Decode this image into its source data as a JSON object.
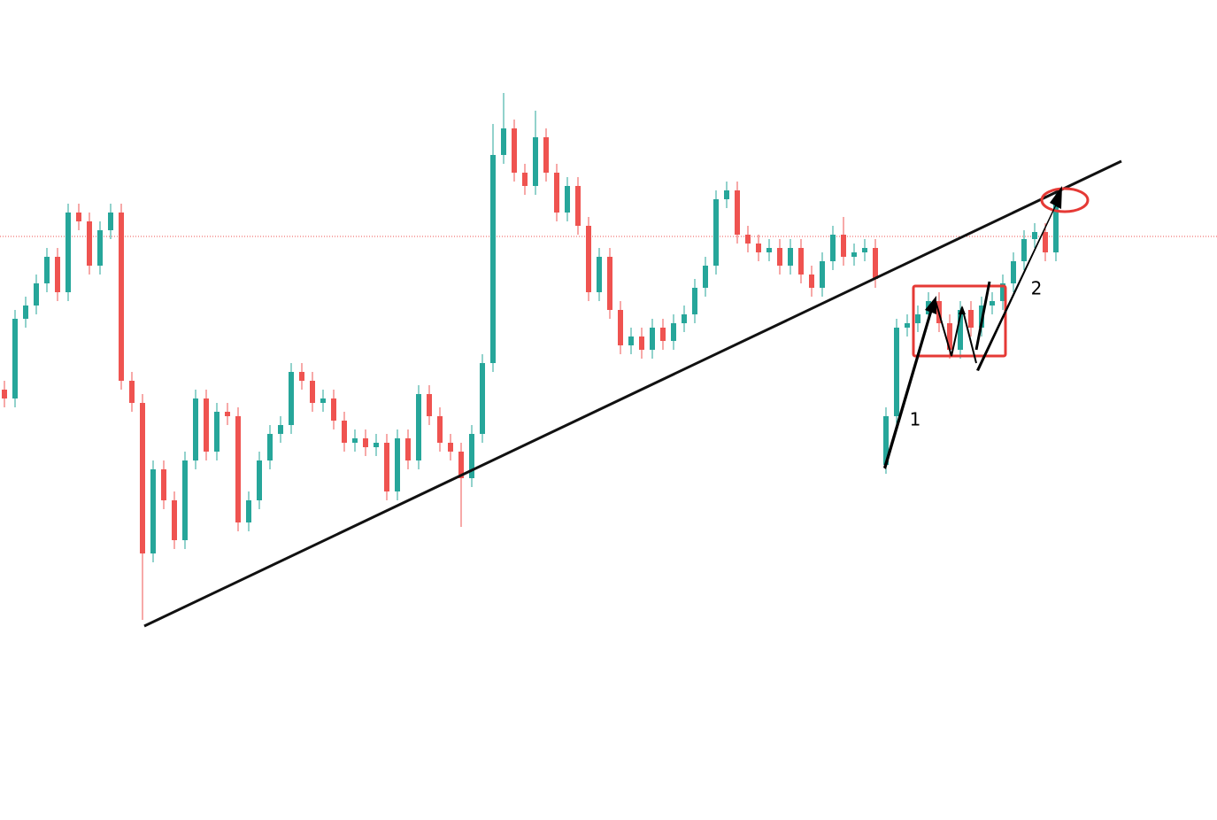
{
  "chart_data": {
    "type": "candlestick",
    "ylim": [
      0,
      926
    ],
    "up_color": "#26a69a",
    "down_color": "#ef5350",
    "price_line": {
      "value": 659,
      "color": "#ef5350"
    },
    "annotations": [
      "1",
      "2"
    ],
    "ohlc": [
      [
        486,
        496,
        466,
        476
      ],
      [
        476,
        576,
        466,
        566
      ],
      [
        566,
        591,
        556,
        581
      ],
      [
        581,
        616,
        571,
        606
      ],
      [
        606,
        646,
        596,
        636
      ],
      [
        636,
        646,
        586,
        596
      ],
      [
        596,
        696,
        586,
        686
      ],
      [
        686,
        696,
        666,
        676
      ],
      [
        676,
        686,
        616,
        626
      ],
      [
        626,
        676,
        616,
        666
      ],
      [
        666,
        696,
        656,
        686
      ],
      [
        686,
        696,
        486,
        496
      ],
      [
        496,
        506,
        461,
        471
      ],
      [
        471,
        481,
        226,
        301
      ],
      [
        301,
        406,
        291,
        396
      ],
      [
        396,
        406,
        351,
        361
      ],
      [
        361,
        371,
        306,
        316
      ],
      [
        316,
        416,
        306,
        406
      ],
      [
        406,
        486,
        396,
        476
      ],
      [
        476,
        486,
        406,
        416
      ],
      [
        416,
        471,
        406,
        461
      ],
      [
        461,
        471,
        446,
        456
      ],
      [
        456,
        466,
        326,
        336
      ],
      [
        336,
        371,
        326,
        361
      ],
      [
        361,
        416,
        351,
        406
      ],
      [
        406,
        446,
        396,
        436
      ],
      [
        436,
        456,
        426,
        446
      ],
      [
        446,
        516,
        436,
        506
      ],
      [
        506,
        516,
        486,
        496
      ],
      [
        496,
        506,
        461,
        471
      ],
      [
        471,
        486,
        461,
        476
      ],
      [
        476,
        486,
        441,
        451
      ],
      [
        451,
        461,
        416,
        426
      ],
      [
        426,
        441,
        416,
        431
      ],
      [
        431,
        441,
        411,
        421
      ],
      [
        421,
        436,
        411,
        426
      ],
      [
        426,
        436,
        361,
        371
      ],
      [
        371,
        441,
        361,
        431
      ],
      [
        431,
        441,
        396,
        406
      ],
      [
        406,
        491,
        396,
        481
      ],
      [
        481,
        491,
        446,
        456
      ],
      [
        456,
        466,
        416,
        426
      ],
      [
        426,
        436,
        406,
        416
      ],
      [
        416,
        426,
        331,
        386
      ],
      [
        386,
        446,
        376,
        436
      ],
      [
        436,
        526,
        426,
        516
      ],
      [
        516,
        786,
        506,
        751
      ],
      [
        751,
        821,
        741,
        781
      ],
      [
        781,
        791,
        721,
        731
      ],
      [
        731,
        741,
        706,
        716
      ],
      [
        716,
        801,
        706,
        771
      ],
      [
        771,
        781,
        721,
        731
      ],
      [
        731,
        741,
        676,
        686
      ],
      [
        686,
        726,
        676,
        716
      ],
      [
        716,
        726,
        661,
        671
      ],
      [
        671,
        681,
        586,
        596
      ],
      [
        596,
        646,
        586,
        636
      ],
      [
        636,
        646,
        566,
        576
      ],
      [
        576,
        586,
        526,
        536
      ],
      [
        536,
        556,
        526,
        546
      ],
      [
        546,
        556,
        521,
        531
      ],
      [
        531,
        566,
        521,
        556
      ],
      [
        556,
        566,
        531,
        541
      ],
      [
        541,
        571,
        531,
        561
      ],
      [
        561,
        581,
        551,
        571
      ],
      [
        571,
        611,
        561,
        601
      ],
      [
        601,
        636,
        591,
        626
      ],
      [
        626,
        711,
        616,
        701
      ],
      [
        701,
        721,
        691,
        711
      ],
      [
        711,
        721,
        651,
        661
      ],
      [
        661,
        671,
        641,
        651
      ],
      [
        651,
        661,
        631,
        641
      ],
      [
        641,
        656,
        631,
        646
      ],
      [
        646,
        656,
        616,
        626
      ],
      [
        626,
        656,
        616,
        646
      ],
      [
        646,
        656,
        606,
        616
      ],
      [
        616,
        626,
        591,
        601
      ],
      [
        601,
        641,
        591,
        631
      ],
      [
        631,
        671,
        621,
        661
      ],
      [
        661,
        681,
        626,
        636
      ],
      [
        636,
        651,
        626,
        641
      ],
      [
        641,
        656,
        631,
        646
      ],
      [
        646,
        656,
        601,
        611
      ],
      [
        401,
        466,
        391,
        456
      ],
      [
        456,
        566,
        446,
        556
      ],
      [
        556,
        571,
        546,
        561
      ],
      [
        561,
        581,
        551,
        571
      ],
      [
        571,
        596,
        561,
        586
      ],
      [
        586,
        596,
        551,
        561
      ],
      [
        561,
        571,
        521,
        531
      ],
      [
        531,
        586,
        521,
        576
      ],
      [
        576,
        586,
        546,
        556
      ],
      [
        556,
        591,
        546,
        581
      ],
      [
        581,
        596,
        571,
        586
      ],
      [
        586,
        616,
        576,
        606
      ],
      [
        606,
        641,
        596,
        631
      ],
      [
        631,
        666,
        621,
        656
      ],
      [
        656,
        674,
        646,
        664
      ],
      [
        664,
        674,
        631,
        641
      ],
      [
        641,
        711,
        631,
        701
      ]
    ]
  }
}
